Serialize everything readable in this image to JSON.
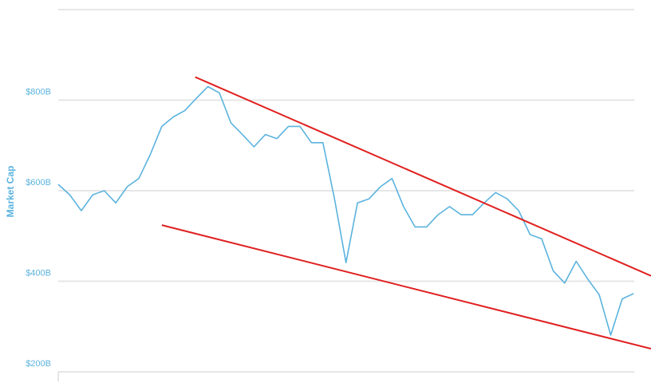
{
  "chart_data": {
    "type": "line",
    "y_axis_label": "Market Cap",
    "xlim": [
      0,
      103
    ],
    "ylim": [
      200,
      1000
    ],
    "yticks": [
      {
        "value": 200,
        "label": "$200B"
      },
      {
        "value": 400,
        "label": "$400B"
      },
      {
        "value": 600,
        "label": "$600B"
      },
      {
        "value": 800,
        "label": "$800B"
      }
    ],
    "grid": true,
    "x": [
      0,
      2,
      4,
      6,
      8,
      10,
      12,
      14,
      16,
      18,
      20,
      22,
      24,
      26,
      28,
      30,
      32,
      34,
      36,
      38,
      40,
      42,
      44,
      46,
      48,
      50,
      52,
      54,
      56,
      58,
      60,
      62,
      64,
      66,
      68,
      70,
      72,
      74,
      76,
      78,
      80,
      82,
      84,
      86,
      88,
      90,
      92,
      94,
      96,
      98,
      100
    ],
    "series": [
      {
        "color": "#5bb3de",
        "values": [
          614,
          591,
          556,
          591,
          600,
          573,
          609,
          627,
          680,
          742,
          763,
          777,
          804,
          830,
          816,
          750,
          724,
          697,
          724,
          715,
          742,
          742,
          706,
          706,
          582,
          441,
          573,
          582,
          609,
          627,
          565,
          520,
          520,
          547,
          565,
          547,
          547,
          573,
          596,
          582,
          556,
          503,
          494,
          423,
          396,
          444,
          405,
          370,
          281,
          361,
          373
        ]
      }
    ],
    "trendlines": [
      {
        "color": "#e02020",
        "x": [
          23.8,
          103
        ],
        "y": [
          851,
          412
        ]
      },
      {
        "color": "#e02020",
        "x": [
          18.0,
          103
        ],
        "y": [
          524,
          251
        ]
      }
    ]
  }
}
